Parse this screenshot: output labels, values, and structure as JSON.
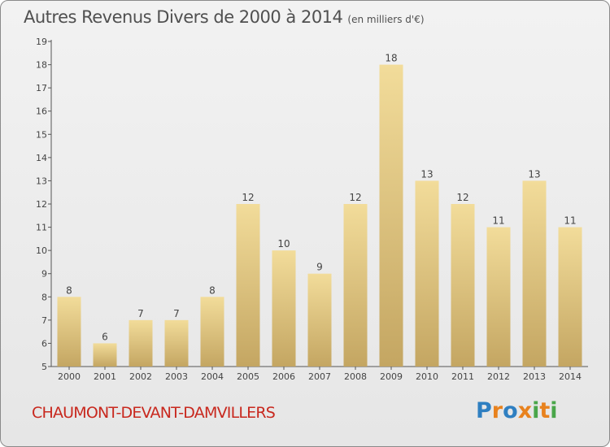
{
  "title": "Autres Revenus Divers de 2000 à 2014",
  "title_unit": "(en milliers d'€)",
  "town": "CHAUMONT-DEVANT-DAMVILLERS",
  "logo": {
    "letters": [
      "P",
      "r",
      "o",
      "x",
      "i",
      "t",
      "i"
    ],
    "colors": [
      "#2f7fc1",
      "#e8821e",
      "#2f7fc1",
      "#e8821e",
      "#4aa64a",
      "#e8821e",
      "#4aa64a"
    ]
  },
  "colors": {
    "bar_light": "#f2dc9a",
    "bar_dark": "#c4a662",
    "town": "#c8281e",
    "title": "#505050"
  },
  "chart_data": {
    "type": "bar",
    "categories": [
      "2000",
      "2001",
      "2002",
      "2003",
      "2004",
      "2005",
      "2006",
      "2007",
      "2008",
      "2009",
      "2010",
      "2011",
      "2012",
      "2013",
      "2014"
    ],
    "values": [
      8,
      6,
      7,
      7,
      8,
      12,
      10,
      9,
      12,
      18,
      13,
      12,
      11,
      13,
      11
    ],
    "value_labels": [
      "8",
      "6",
      "7",
      "7",
      "8",
      "12",
      "10",
      "9",
      "12",
      "18",
      "13",
      "12",
      "11",
      "13",
      "11"
    ],
    "yticks": [
      "5",
      "6",
      "7",
      "8",
      "9",
      "10",
      "11",
      "12",
      "13",
      "14",
      "15",
      "16",
      "17",
      "18",
      "19"
    ],
    "ylim": [
      5,
      19
    ],
    "grid": false,
    "title": "Autres Revenus Divers de 2000 à 2014",
    "xlabel": "",
    "ylabel": ""
  }
}
